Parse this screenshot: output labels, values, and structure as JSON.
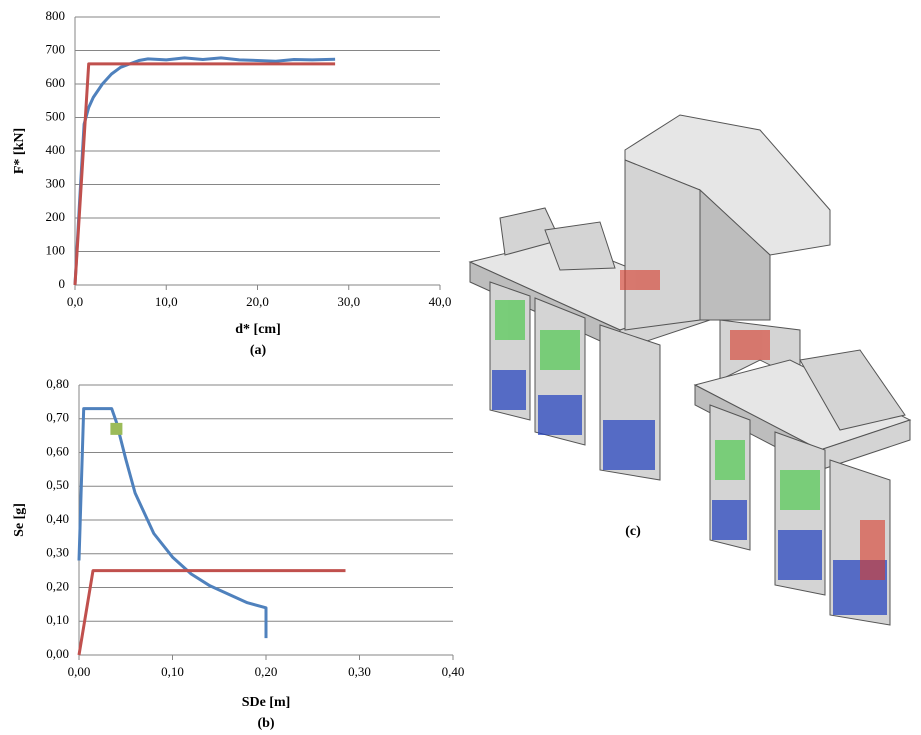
{
  "chart_data": [
    {
      "type": "line",
      "x_label": "d* [cm]",
      "y_label": "F* [kN]",
      "caption": "(a)",
      "xlim": [
        0,
        40
      ],
      "ylim": [
        0,
        800
      ],
      "xticks": [
        {
          "value": 0,
          "label": "0,0"
        },
        {
          "value": 10,
          "label": "10,0"
        },
        {
          "value": 20,
          "label": "20,0"
        },
        {
          "value": 30,
          "label": "30,0"
        },
        {
          "value": 40,
          "label": "40,0"
        }
      ],
      "yticks": [
        0,
        100,
        200,
        300,
        400,
        500,
        600,
        700,
        800
      ],
      "grid": true,
      "series": [
        {
          "color": "#4f81bd",
          "x": [
            0,
            0.5,
            1,
            1.5,
            2,
            3,
            4,
            5,
            6,
            7,
            8,
            10,
            12,
            14,
            16,
            18,
            20,
            22,
            24,
            26,
            28.5
          ],
          "values": [
            0,
            250,
            480,
            530,
            560,
            600,
            630,
            650,
            660,
            670,
            675,
            672,
            678,
            673,
            678,
            672,
            670,
            668,
            673,
            672,
            674
          ]
        },
        {
          "color": "#c0504d",
          "x": [
            0,
            1.5,
            28.5
          ],
          "values": [
            0,
            660,
            660
          ]
        }
      ]
    },
    {
      "type": "line",
      "x_label": "SDe [m]",
      "y_label": "Se [g]",
      "caption": "(b)",
      "xlim": [
        0,
        0.4
      ],
      "ylim": [
        0,
        0.8
      ],
      "xticks": [
        {
          "value": 0,
          "label": "0,00"
        },
        {
          "value": 0.1,
          "label": "0,10"
        },
        {
          "value": 0.2,
          "label": "0,20"
        },
        {
          "value": 0.3,
          "label": "0,30"
        },
        {
          "value": 0.4,
          "label": "0,40"
        }
      ],
      "yticks": [
        {
          "value": 0,
          "label": "0,00"
        },
        {
          "value": 0.1,
          "label": "0,10"
        },
        {
          "value": 0.2,
          "label": "0,20"
        },
        {
          "value": 0.3,
          "label": "0,30"
        },
        {
          "value": 0.4,
          "label": "0,40"
        },
        {
          "value": 0.5,
          "label": "0,50"
        },
        {
          "value": 0.6,
          "label": "0,60"
        },
        {
          "value": 0.7,
          "label": "0,70"
        },
        {
          "value": 0.8,
          "label": "0,80"
        }
      ],
      "grid": true,
      "series": [
        {
          "color": "#4f81bd",
          "x": [
            0,
            0.005,
            0.035,
            0.04,
            0.05,
            0.06,
            0.08,
            0.1,
            0.12,
            0.14,
            0.16,
            0.18,
            0.2,
            0.2
          ],
          "values": [
            0.28,
            0.73,
            0.73,
            0.69,
            0.58,
            0.48,
            0.36,
            0.29,
            0.24,
            0.205,
            0.18,
            0.155,
            0.14,
            0.05
          ]
        },
        {
          "color": "#c0504d",
          "x": [
            0,
            0.015,
            0.285
          ],
          "values": [
            0,
            0.25,
            0.25
          ]
        },
        {
          "color": "#9bbb59",
          "marker": "square",
          "x": [
            0.04
          ],
          "values": [
            0.67
          ]
        }
      ]
    }
  ],
  "image_caption": "(c)"
}
